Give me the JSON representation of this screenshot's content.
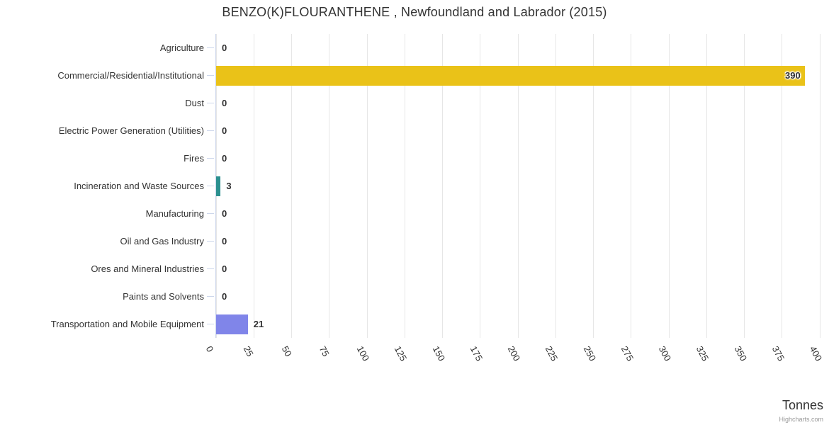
{
  "chart": {
    "title": "BENZO(K)FLOURANTHENE , Newfoundland and Labrador (2015)",
    "y_axis_title": "Tonnes",
    "credits": "Highcharts.com"
  },
  "chart_data": {
    "type": "bar",
    "orientation": "horizontal",
    "title": "BENZO(K)FLOURANTHENE , Newfoundland and Labrador (2015)",
    "categories": [
      "Agriculture",
      "Commercial/Residential/Institutional",
      "Dust",
      "Electric Power Generation (Utilities)",
      "Fires",
      "Incineration and Waste Sources",
      "Manufacturing",
      "Oil and Gas Industry",
      "Ores and Mineral Industries",
      "Paints and Solvents",
      "Transportation and Mobile Equipment"
    ],
    "values": [
      0,
      390,
      0,
      0,
      0,
      3,
      0,
      0,
      0,
      0,
      21
    ],
    "data_labels": [
      "0",
      "390",
      "0",
      "0",
      "0",
      "3",
      "0",
      "0",
      "0",
      "0",
      "21"
    ],
    "bar_colors": [
      null,
      "#eac218",
      null,
      null,
      null,
      "#2b908f",
      null,
      null,
      null,
      null,
      "#8085e9"
    ],
    "xlabel": "Tonnes",
    "ylabel": "",
    "xlim": [
      0,
      400
    ],
    "tick_interval": 25,
    "x_tick_labels": [
      "0",
      "25",
      "50",
      "75",
      "100",
      "125",
      "150",
      "175",
      "200",
      "225",
      "250",
      "275",
      "300",
      "325",
      "350",
      "375",
      "400"
    ],
    "grid": true,
    "legend": false,
    "styles": {
      "grid_color": "#e6e6e6",
      "axis_line_color": "#ccd6eb",
      "tick_color": "#ccd6eb",
      "label_color": "#333333",
      "title_color": "#333333",
      "credits_color": "#999999",
      "background": "#ffffff"
    }
  }
}
